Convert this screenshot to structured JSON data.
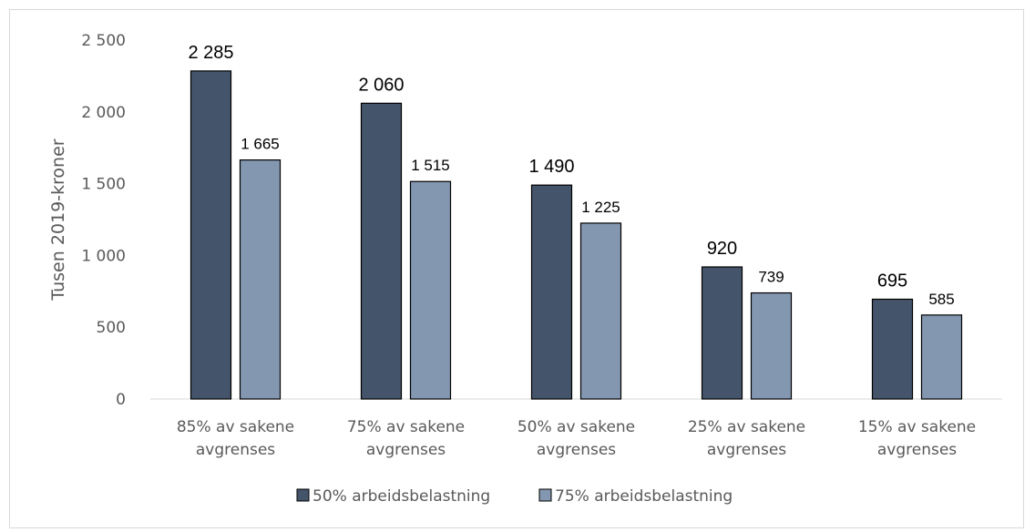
{
  "chart_data": {
    "type": "bar",
    "title": "",
    "xlabel": "",
    "ylabel": "Tusen 2019-kroner",
    "ylim": [
      0,
      2500
    ],
    "yticks": [
      0,
      500,
      1000,
      1500,
      2000,
      2500
    ],
    "ytick_labels": [
      "0",
      "500",
      "1 000",
      "1 500",
      "2 000",
      "2 500"
    ],
    "grid": false,
    "legend_position": "bottom",
    "categories": [
      [
        "85% av sakene",
        "avgrenses"
      ],
      [
        "75% av sakene",
        "avgrenses"
      ],
      [
        "50% av sakene",
        "avgrenses"
      ],
      [
        "25% av sakene",
        "avgrenses"
      ],
      [
        "15% av sakene",
        "avgrenses"
      ]
    ],
    "series": [
      {
        "name": "50% arbeidsbelastning",
        "color": "#44546a",
        "values": [
          2285,
          2060,
          1490,
          920,
          695
        ],
        "labels": [
          "2 285",
          "2 060",
          "1 490",
          "920",
          "695"
        ]
      },
      {
        "name": "75% arbeidsbelastning",
        "color": "#8497b0",
        "values": [
          1665,
          1515,
          1225,
          739,
          585
        ],
        "labels": [
          "1 665",
          "1 515",
          "1 225",
          "739",
          "585"
        ]
      }
    ]
  }
}
